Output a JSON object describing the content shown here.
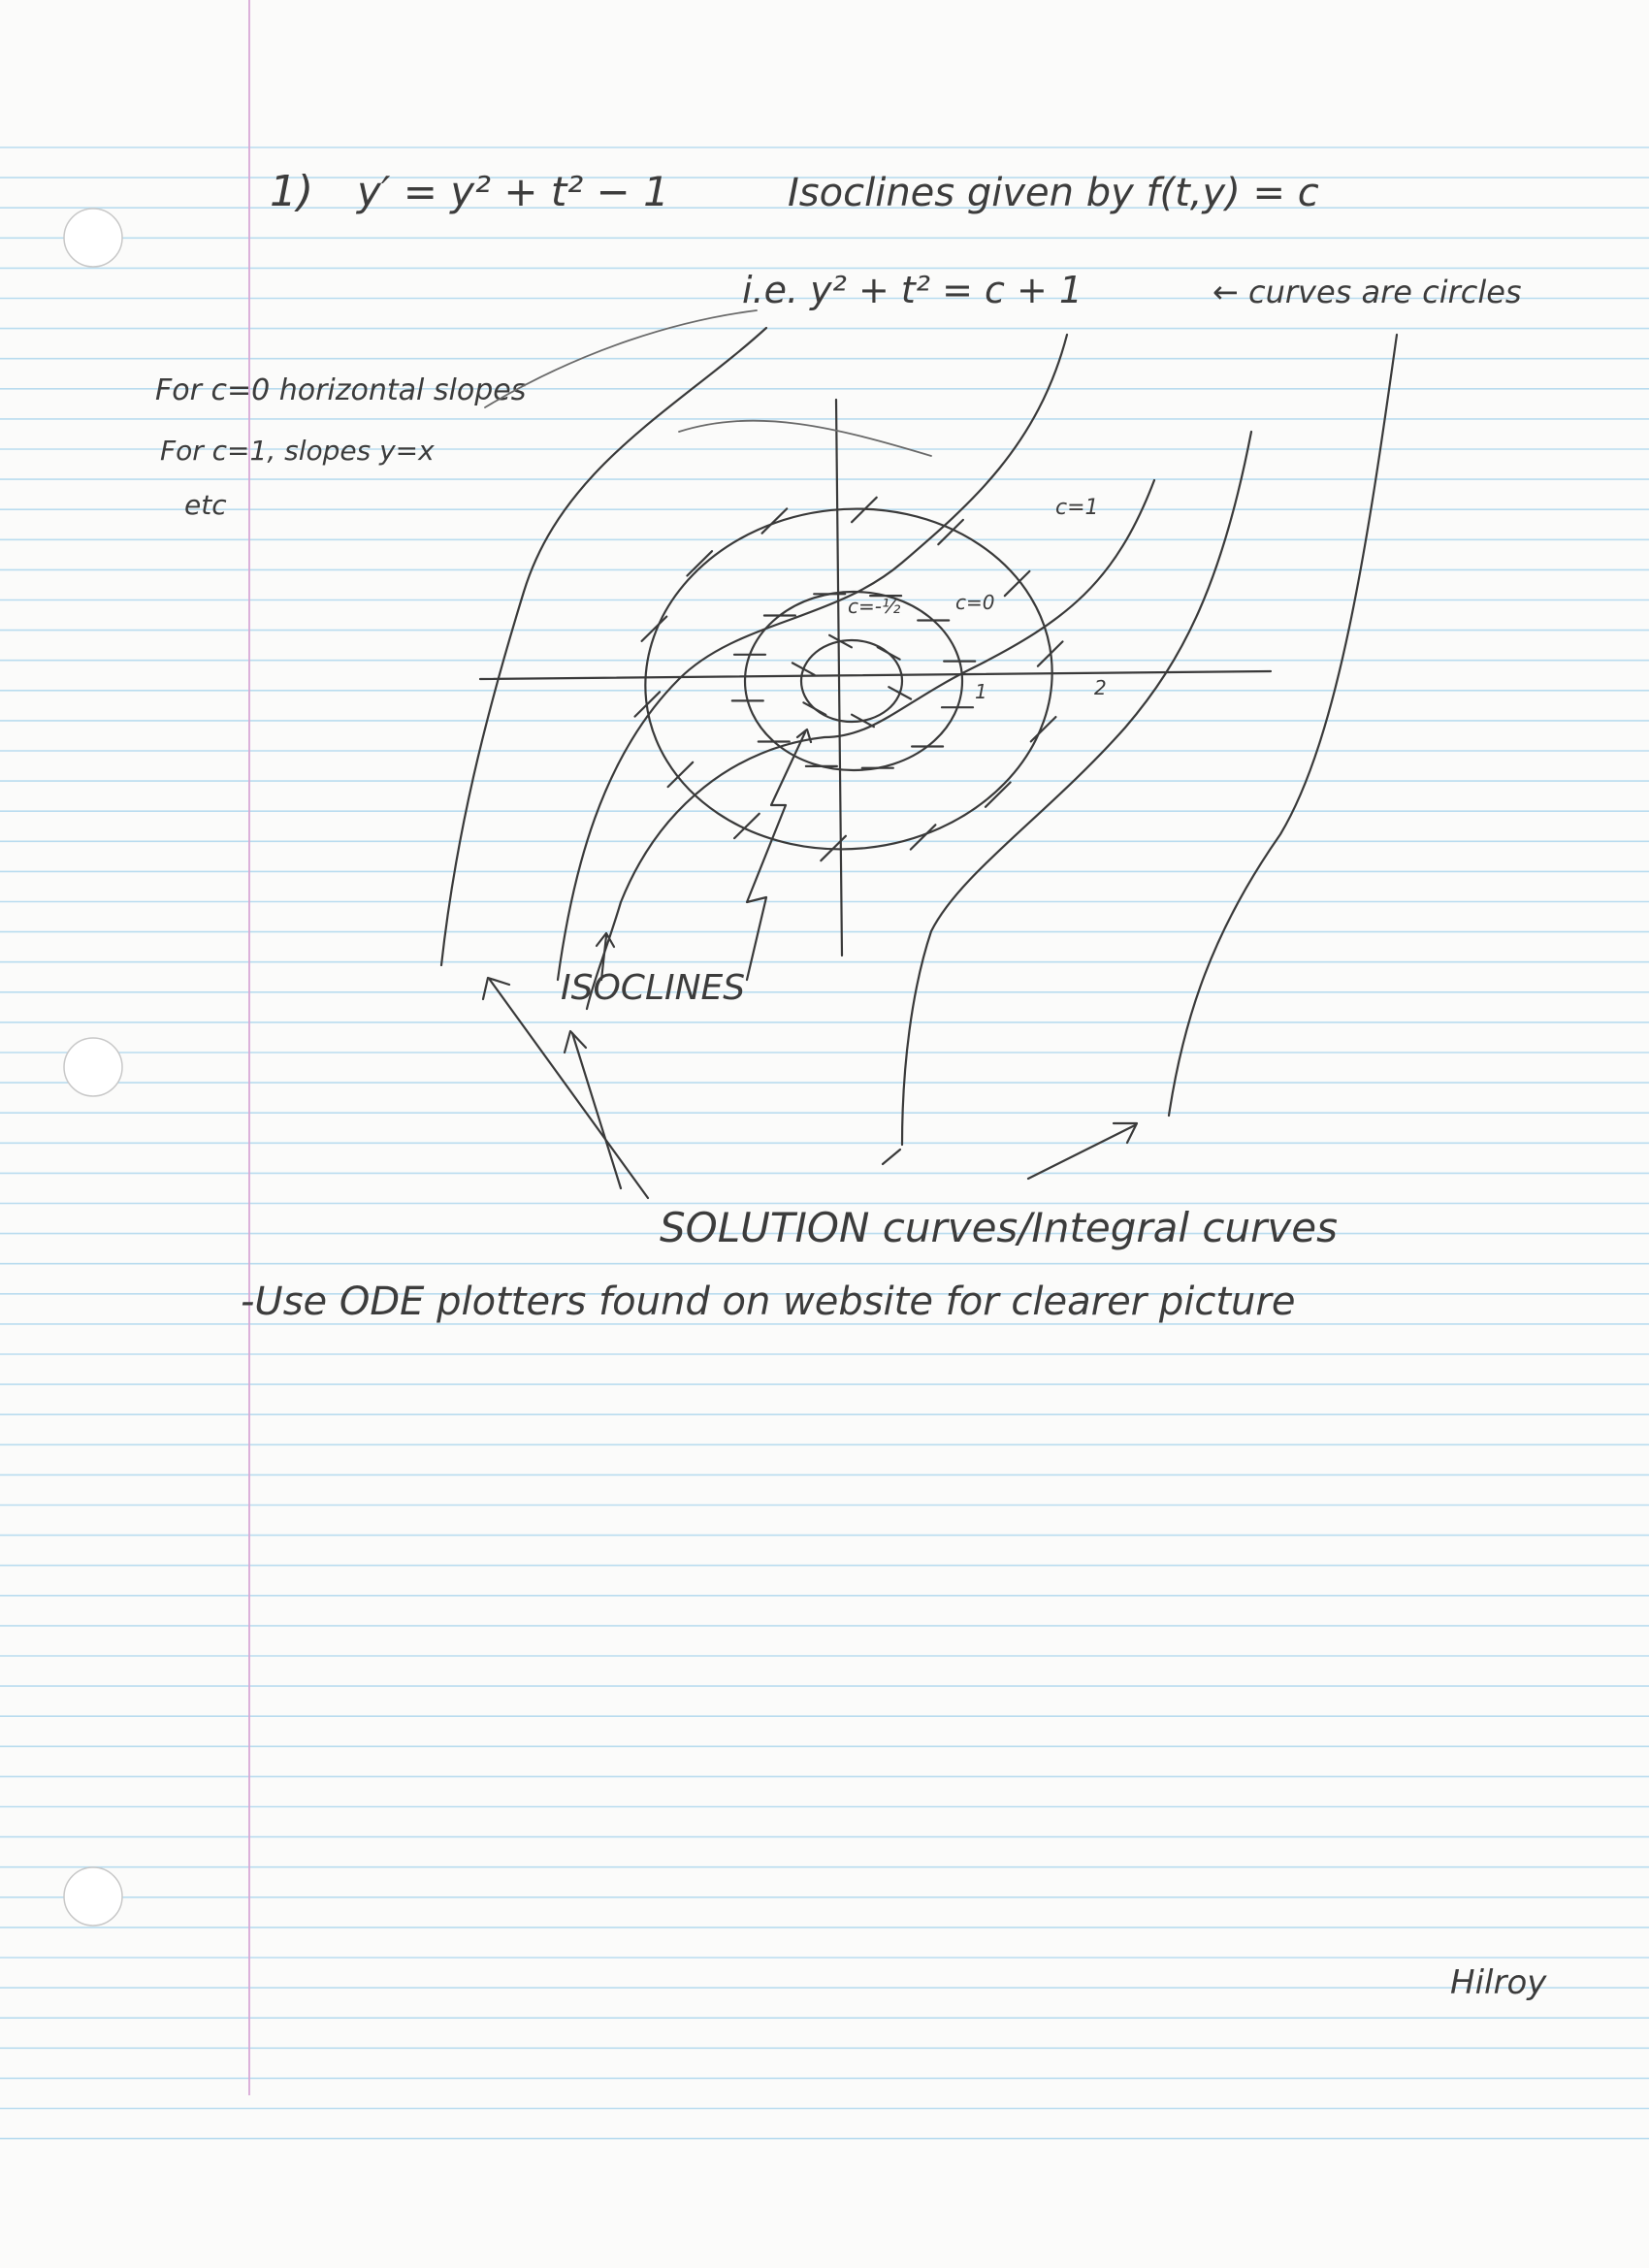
{
  "problem": {
    "number": "1)",
    "equation": "y′ = y² + t² − 1",
    "isoclines_given_by": "Isoclines given by f(t,y) = c",
    "ie_line": "i.e. y² + t² = c + 1",
    "curves_note": "← curves are circles"
  },
  "notes": {
    "line1": "For c=0  horizontal slopes",
    "line2": "For c=1,  slopes y=x",
    "line3": "etc"
  },
  "figure": {
    "label_c_1": "c=1",
    "label_c_neg_half": "c=-½",
    "label_c_0": "c=0",
    "label_1": "1",
    "label_2": "2",
    "isoclines_label": "ISOCLINES",
    "solution_label": "SOLUTION curves/Integral curves"
  },
  "footer_note": "-Use ODE plotters found on website for clearer picture",
  "watermark": "Hilroy"
}
